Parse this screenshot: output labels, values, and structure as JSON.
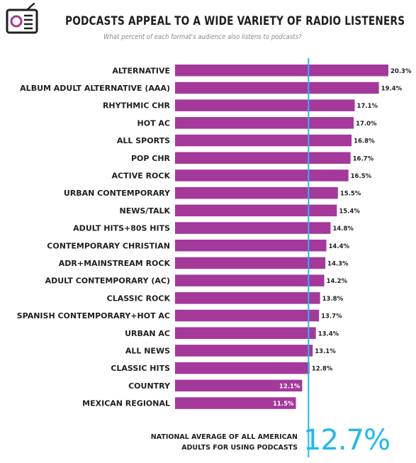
{
  "header": {
    "title": "PODCASTS APPEAL TO A WIDE VARIETY OF RADIO LISTENERS",
    "subtitle": "What percent of each format's audience also listens to podcasts?"
  },
  "footer": {
    "average_text_line1": "NATIONAL AVERAGE OF ALL AMERICAN",
    "average_text_line2": "ADULTS FOR USING PODCASTS",
    "average_value": "12.7%"
  },
  "colors": {
    "bar": "#a4389b",
    "average_line": "#21b8f0",
    "icon": "#a4389b"
  },
  "chart_data": {
    "type": "bar",
    "orientation": "horizontal",
    "title": "PODCASTS APPEAL TO A WIDE VARIETY OF RADIO LISTENERS",
    "subtitle": "What percent of each format's audience also listens to podcasts?",
    "categories": [
      "ALTERNATIVE",
      "ALBUM ADULT ALTERNATIVE (AAA)",
      "RHYTHMIC CHR",
      "HOT AC",
      "ALL SPORTS",
      "POP CHR",
      "ACTIVE ROCK",
      "URBAN CONTEMPORARY",
      "NEWS/TALK",
      "ADULT HITS+80S HITS",
      "CONTEMPORARY CHRISTIAN",
      "ADR+MAINSTREAM ROCK",
      "ADULT CONTEMPORARY (AC)",
      "CLASSIC ROCK",
      "SPANISH CONTEMPORARY+HOT AC",
      "URBAN AC",
      "ALL NEWS",
      "CLASSIC HITS",
      "COUNTRY",
      "MEXICAN REGIONAL"
    ],
    "values": [
      20.3,
      19.4,
      17.1,
      17.0,
      16.8,
      16.7,
      16.5,
      15.5,
      15.4,
      14.8,
      14.4,
      14.3,
      14.2,
      13.8,
      13.7,
      13.4,
      13.1,
      12.8,
      12.1,
      11.5
    ],
    "value_labels": [
      "20.3%",
      "19.4%",
      "17.1%",
      "17.0%",
      "16.8%",
      "16.7%",
      "16.5%",
      "15.5%",
      "15.4%",
      "14.8%",
      "14.4%",
      "14.3%",
      "14.2%",
      "13.8%",
      "13.7%",
      "13.4%",
      "13.1%",
      "12.8%",
      "12.1%",
      "11.5%"
    ],
    "reference_line": 12.7,
    "xlim": [
      0,
      20.3
    ],
    "grid": false,
    "legend": "none"
  }
}
